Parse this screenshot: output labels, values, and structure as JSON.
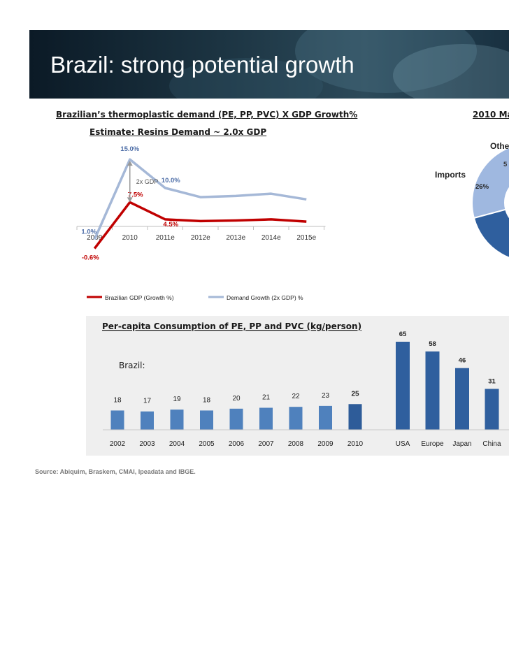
{
  "slide": {
    "title": "Brazil: strong potential growth",
    "source": "Source: Abiquim, Braskem, CMAI, Ipeadata and IBGE."
  },
  "line_section": {
    "heading": "Brazilian’s thermoplastic demand (PE, PP, PVC)  X  GDP Growth%",
    "subheading": "Estimate: Resins Demand  ~ 2.0x GDP",
    "annotation": "2x GDP"
  },
  "pie_section": {
    "heading": "2010 Ma",
    "labels": {
      "others": "Othe",
      "others_value": "5",
      "imports": "Imports",
      "imports_value": "26%"
    }
  },
  "bar_section": {
    "heading": "Per-capita Consumption of PE, PP and PVC (kg/person)",
    "brazil_label": "Brazil:"
  },
  "colors": {
    "gdp_line": "#c00000",
    "demand_line": "#a5b8d7",
    "bar_brazil": "#4f81bd",
    "bar_highlight": "#2e5c99",
    "bar_world": "#2f5f9e",
    "pie_dark": "#2f5f9e",
    "pie_light": "#9fb8e0"
  },
  "chart_data": [
    {
      "type": "line",
      "categories": [
        "2009",
        "2010",
        "2011e",
        "2012e",
        "2013e",
        "2014e",
        "2015e"
      ],
      "series": [
        {
          "name": "Brazilian GDP (Growth %)",
          "values": [
            -0.6,
            7.5,
            4.5,
            4.2,
            4.3,
            4.5,
            4.1
          ],
          "labels": [
            "-0.6%",
            "7.5%",
            "4.5%",
            "",
            "",
            "",
            ""
          ]
        },
        {
          "name": "Demand Growth (2x GDP) %",
          "values": [
            1.0,
            15.0,
            10.0,
            8.4,
            8.6,
            9.0,
            8.0
          ],
          "labels": [
            "1.0%",
            "15.0%",
            "10.0%",
            "",
            "",
            "",
            ""
          ]
        }
      ],
      "title": "",
      "xlabel": "",
      "ylabel": "",
      "ylim": [
        -2,
        16
      ],
      "legend": "bottom"
    },
    {
      "type": "bar",
      "title": "Per-capita Consumption of PE, PP and PVC (kg/person)",
      "categories": [
        "2002",
        "2003",
        "2004",
        "2005",
        "2006",
        "2007",
        "2008",
        "2009",
        "2010"
      ],
      "values": [
        18,
        17,
        19,
        18,
        20,
        21,
        22,
        23,
        25
      ],
      "ylim": [
        0,
        70
      ]
    },
    {
      "type": "bar",
      "categories": [
        "USA",
        "Europe",
        "Japan",
        "China"
      ],
      "values": [
        65,
        58,
        46,
        31
      ],
      "ylim": [
        0,
        70
      ]
    },
    {
      "type": "pie",
      "slices": [
        {
          "label": "Imports",
          "value": 26
        },
        {
          "label": "Othe",
          "value": 5
        }
      ]
    }
  ]
}
